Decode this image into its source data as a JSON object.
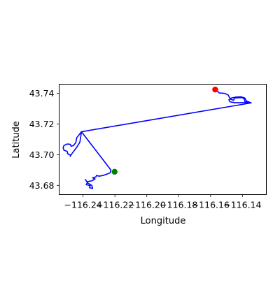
{
  "chart_data": {
    "type": "line",
    "title": "",
    "xlabel": "Longitude",
    "ylabel": "Latitude",
    "xlim": [
      -116.255,
      -116.125
    ],
    "ylim": [
      43.674,
      43.746
    ],
    "xticks": [
      -116.24,
      -116.22,
      -116.2,
      -116.18,
      -116.16,
      -116.14
    ],
    "xtick_labels": [
      "−116.24",
      "−116.22",
      "−116.20",
      "−116.18",
      "−116.16",
      "−116.14"
    ],
    "yticks": [
      43.68,
      43.7,
      43.72,
      43.74
    ],
    "ytick_labels": [
      "43.68",
      "43.70",
      "43.72",
      "43.74"
    ],
    "grid": false,
    "series": [
      {
        "color": "#0000ff",
        "points": [
          [
            -116.1571,
            43.7425
          ],
          [
            -116.1545,
            43.7403
          ],
          [
            -116.151,
            43.74
          ],
          [
            -116.149,
            43.739
          ],
          [
            -116.1475,
            43.7362
          ],
          [
            -116.1455,
            43.7355
          ],
          [
            -116.145,
            43.737
          ],
          [
            -116.142,
            43.7372
          ],
          [
            -116.14,
            43.7372
          ],
          [
            -116.139,
            43.7365
          ],
          [
            -116.1385,
            43.7348
          ],
          [
            -116.136,
            43.734
          ],
          [
            -116.1445,
            43.7339
          ],
          [
            -116.1478,
            43.7345
          ],
          [
            -116.1485,
            43.7358
          ],
          [
            -116.147,
            43.737
          ],
          [
            -116.144,
            43.7376
          ],
          [
            -116.141,
            43.7378
          ],
          [
            -116.1385,
            43.737
          ],
          [
            -116.1375,
            43.735
          ],
          [
            -116.1345,
            43.7338
          ],
          [
            -116.241,
            43.715
          ],
          [
            -116.244,
            43.711
          ],
          [
            -116.2445,
            43.708
          ],
          [
            -116.246,
            43.706
          ],
          [
            -116.2475,
            43.7055
          ],
          [
            -116.248,
            43.7068
          ],
          [
            -116.25,
            43.707
          ],
          [
            -116.252,
            43.706
          ],
          [
            -116.2525,
            43.7045
          ],
          [
            -116.252,
            43.703
          ],
          [
            -116.25,
            43.7022
          ],
          [
            -116.2495,
            43.7005
          ],
          [
            -116.248,
            43.6998
          ],
          [
            -116.248,
            43.699
          ],
          [
            -116.2475,
            43.7
          ],
          [
            -116.244,
            43.7048
          ],
          [
            -116.242,
            43.7082
          ],
          [
            -116.241,
            43.715
          ],
          [
            -116.2225,
            43.69
          ],
          [
            -116.223,
            43.6882
          ],
          [
            -116.226,
            43.687
          ],
          [
            -116.2275,
            43.6865
          ],
          [
            -116.23,
            43.686
          ],
          [
            -116.2315,
            43.6865
          ],
          [
            -116.232,
            43.6855
          ],
          [
            -116.234,
            43.685
          ],
          [
            -116.2325,
            43.6842
          ],
          [
            -116.2345,
            43.683
          ],
          [
            -116.237,
            43.6825
          ],
          [
            -116.238,
            43.6805
          ],
          [
            -116.2355,
            43.6798
          ],
          [
            -116.236,
            43.6785
          ],
          [
            -116.234,
            43.678
          ],
          [
            -116.2345,
            43.68
          ],
          [
            -116.237,
            43.6815
          ],
          [
            -116.2385,
            43.6838
          ]
        ]
      }
    ],
    "markers": [
      {
        "name": "start",
        "color": "#ff0000",
        "x": -116.1571,
        "y": 43.7425
      },
      {
        "name": "end",
        "color": "#008000",
        "x": -116.2202,
        "y": 43.6889
      }
    ]
  }
}
